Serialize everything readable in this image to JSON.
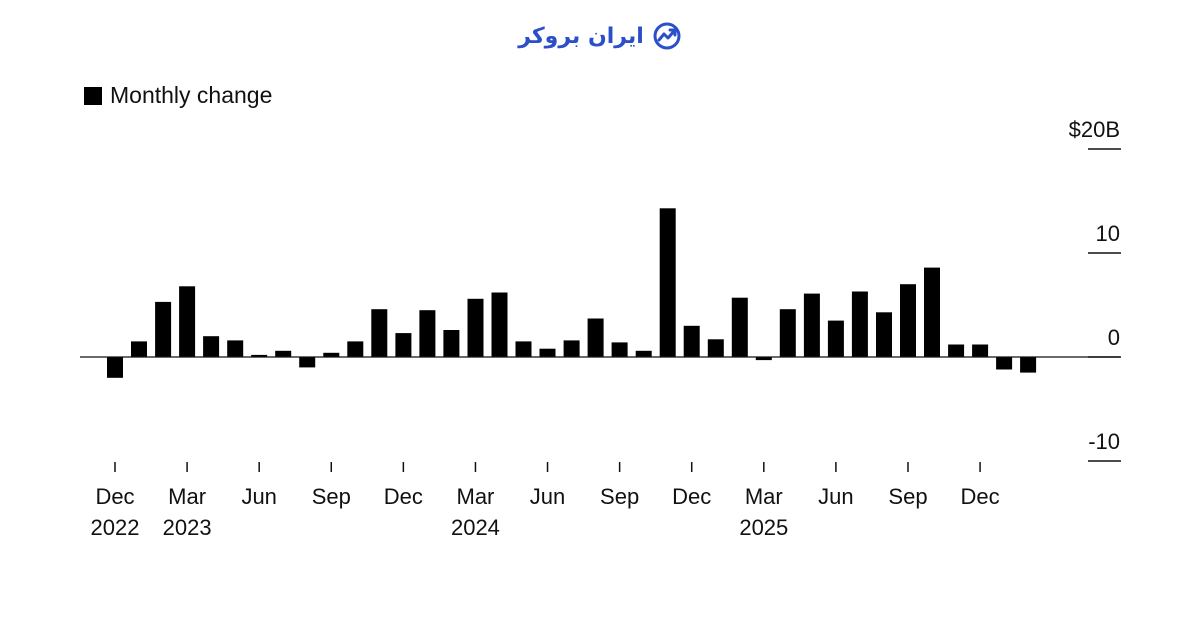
{
  "brand": {
    "name": "ایران بروکر",
    "accent": "#2a4fc9",
    "icon": "chart-trend-icon"
  },
  "legend": {
    "label": "Monthly change",
    "color": "#000000"
  },
  "chart_data": {
    "type": "bar",
    "title": "",
    "xlabel": "",
    "ylabel": "",
    "unit_label": "$20B",
    "y_ticks": [
      {
        "value": 20,
        "label": "$20B"
      },
      {
        "value": 10,
        "label": "10"
      },
      {
        "value": 0,
        "label": "0"
      },
      {
        "value": -10,
        "label": "-10"
      }
    ],
    "ylim": [
      -10,
      20
    ],
    "grid": false,
    "legend_position": "top-left",
    "categories": [
      "Dec 2022",
      "Jan 2023",
      "Feb 2023",
      "Mar 2023",
      "Apr 2023",
      "May 2023",
      "Jun 2023",
      "Jul 2023",
      "Aug 2023",
      "Sep 2023",
      "Oct 2023",
      "Nov 2023",
      "Dec 2023",
      "Jan 2024",
      "Feb 2024",
      "Mar 2024",
      "Apr 2024",
      "May 2024",
      "Jun 2024",
      "Jul 2024",
      "Aug 2024",
      "Sep 2024",
      "Oct 2024",
      "Nov 2024",
      "Dec 2024",
      "Jan 2025",
      "Feb 2025",
      "Mar 2025",
      "Apr 2025",
      "May 2025",
      "Jun 2025",
      "Jul 2025",
      "Aug 2025",
      "Sep 2025",
      "Oct 2025",
      "Nov 2025",
      "Dec 2025",
      "Jan 2026",
      "Feb 2026"
    ],
    "series": [
      {
        "values": [
          -2.0,
          1.5,
          5.3,
          6.8,
          2.0,
          1.6,
          0.2,
          0.6,
          -1.0,
          0.4,
          1.5,
          4.6,
          2.3,
          4.5,
          2.6,
          5.6,
          6.2,
          1.5,
          0.8,
          1.6,
          3.7,
          1.4,
          0.6,
          14.3,
          3.0,
          1.7,
          5.7,
          -0.3,
          4.6,
          6.1,
          3.5,
          6.3,
          4.3,
          7.0,
          8.6,
          1.2,
          1.2,
          -1.2,
          -1.5
        ]
      }
    ],
    "x_ticks": [
      {
        "index": 0,
        "month": "Dec",
        "year": "2022"
      },
      {
        "index": 3,
        "month": "Mar",
        "year": "2023"
      },
      {
        "index": 6,
        "month": "Jun",
        "year": ""
      },
      {
        "index": 9,
        "month": "Sep",
        "year": ""
      },
      {
        "index": 12,
        "month": "Dec",
        "year": ""
      },
      {
        "index": 15,
        "month": "Mar",
        "year": "2024"
      },
      {
        "index": 18,
        "month": "Jun",
        "year": ""
      },
      {
        "index": 21,
        "month": "Sep",
        "year": ""
      },
      {
        "index": 24,
        "month": "Dec",
        "year": ""
      },
      {
        "index": 27,
        "month": "Mar",
        "year": "2025"
      },
      {
        "index": 30,
        "month": "Jun",
        "year": ""
      },
      {
        "index": 33,
        "month": "Sep",
        "year": ""
      },
      {
        "index": 36,
        "month": "Dec",
        "year": ""
      }
    ]
  }
}
